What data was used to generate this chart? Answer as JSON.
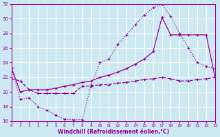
{
  "xlabel": "Windchill (Refroidissement éolien,°C)",
  "bg_color": "#cce8f0",
  "line_color": "#990099",
  "grid_color": "#ffffff",
  "xlim": [
    0,
    23
  ],
  "ylim": [
    16,
    32
  ],
  "xticks": [
    0,
    1,
    2,
    3,
    4,
    5,
    6,
    7,
    8,
    9,
    10,
    11,
    12,
    13,
    14,
    15,
    16,
    17,
    18,
    19,
    20,
    21,
    22,
    23
  ],
  "yticks": [
    16,
    18,
    20,
    22,
    24,
    26,
    28,
    30,
    32
  ],
  "curve1_x": [
    0,
    1,
    2,
    3,
    4,
    5,
    6,
    7,
    8,
    9,
    10,
    11,
    12,
    13,
    14,
    15,
    16,
    17,
    18,
    19,
    20,
    21,
    22,
    23
  ],
  "curve1_y": [
    23.3,
    19.0,
    19.2,
    18.0,
    17.5,
    16.8,
    16.3,
    16.2,
    16.2,
    21.0,
    24.0,
    24.5,
    26.5,
    27.8,
    29.2,
    30.5,
    31.5,
    32.0,
    30.3,
    28.0,
    26.0,
    24.0,
    23.5,
    23.2
  ],
  "curve2_x": [
    0,
    1,
    2,
    3,
    4,
    5,
    6,
    7,
    8,
    9,
    10,
    11,
    12,
    13,
    14,
    15,
    16,
    17,
    18,
    19,
    20,
    21,
    22,
    23
  ],
  "curve2_y": [
    23.3,
    20.0,
    20.3,
    20.3,
    20.3,
    20.5,
    20.8,
    21.0,
    21.3,
    21.5,
    22.0,
    22.3,
    22.7,
    23.2,
    23.8,
    24.5,
    25.5,
    30.2,
    27.8,
    27.8,
    27.8,
    27.8,
    27.8,
    22.0
  ],
  "curve3_x": [
    0,
    1,
    2,
    3,
    4,
    5,
    6,
    7,
    8,
    9,
    10,
    11,
    12,
    13,
    14,
    15,
    16,
    17,
    18,
    19,
    20,
    21,
    22,
    23
  ],
  "curve3_y": [
    21.8,
    21.5,
    20.3,
    19.8,
    19.8,
    19.8,
    19.8,
    19.8,
    20.8,
    20.8,
    21.0,
    21.0,
    21.2,
    21.3,
    21.5,
    21.7,
    21.8,
    22.0,
    21.8,
    21.5,
    21.5,
    21.7,
    21.8,
    22.0
  ]
}
